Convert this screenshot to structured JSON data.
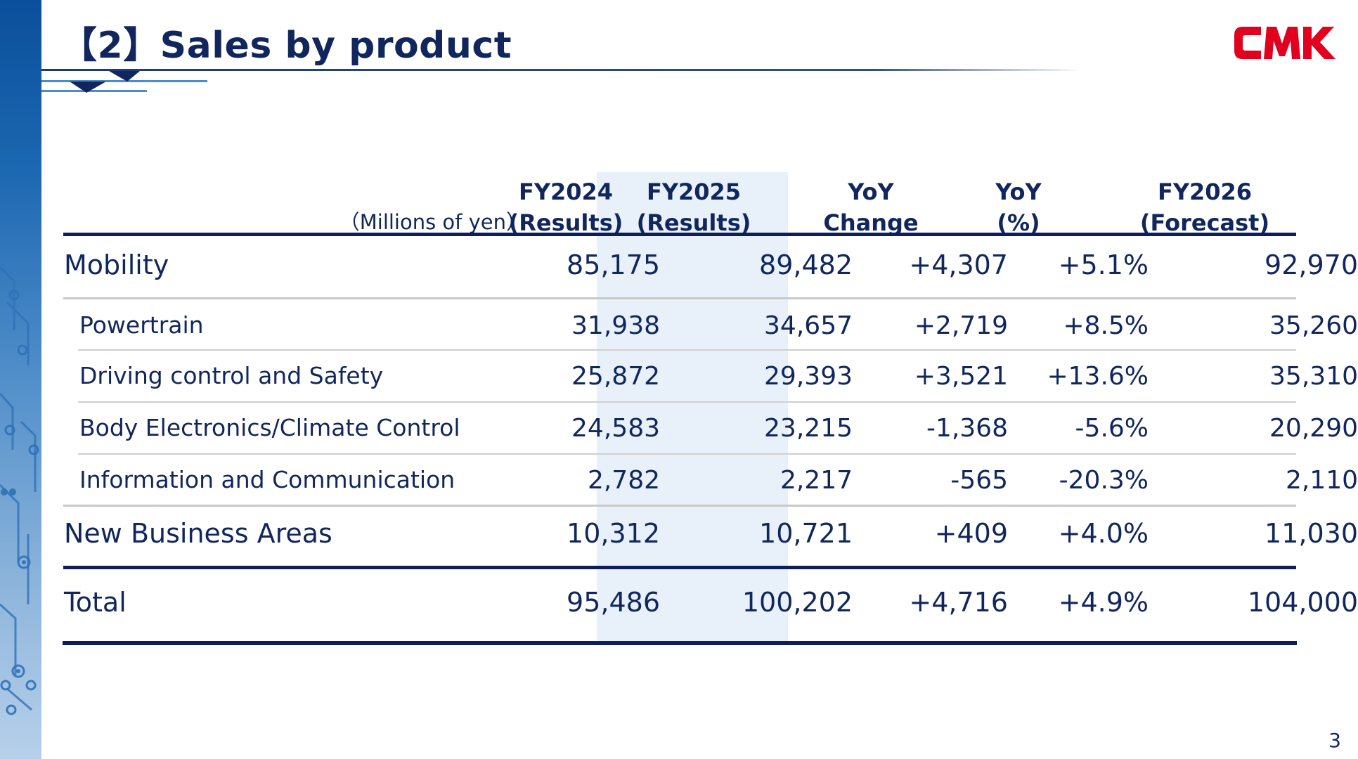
{
  "header": {
    "title": "【2】Sales by product",
    "logo_text": "CMK",
    "brand_color": "#e1001e",
    "title_color": "#10265c"
  },
  "table": {
    "unit_label": "（Millions of yen）",
    "columns": [
      {
        "line1": "FY2024",
        "line2": "(Results)"
      },
      {
        "line1": "FY2025",
        "line2": "(Results)"
      },
      {
        "line1": "YoY",
        "line2": "Change"
      },
      {
        "line1": "YoY",
        "line2": "(%)"
      },
      {
        "line1": "FY2026",
        "line2": "(Forecast)"
      }
    ],
    "rows": [
      {
        "label": "Mobility",
        "values": [
          "85,175",
          "89,482",
          "+4,307",
          "+5.1%",
          "92,970"
        ]
      },
      {
        "label": "Powertrain",
        "values": [
          "31,938",
          "34,657",
          "+2,719",
          "+8.5%",
          "35,260"
        ]
      },
      {
        "label": "Driving control and Safety",
        "values": [
          "25,872",
          "29,393",
          "+3,521",
          "+13.6%",
          "35,310"
        ]
      },
      {
        "label": "Body Electronics/Climate Control",
        "values": [
          "24,583",
          "23,215",
          "-1,368",
          "-5.6%",
          "20,290"
        ]
      },
      {
        "label": "Information and Communication",
        "values": [
          "2,782",
          "2,217",
          "-565",
          "-20.3%",
          "2,110"
        ]
      },
      {
        "label": "New Business Areas",
        "values": [
          "10,312",
          "10,721",
          "+409",
          "+4.0%",
          "11,030"
        ]
      },
      {
        "label": "Total",
        "values": [
          "95,486",
          "100,202",
          "+4,716",
          "+4.9%",
          "104,000"
        ]
      }
    ]
  },
  "footer": {
    "page_number": "3"
  }
}
